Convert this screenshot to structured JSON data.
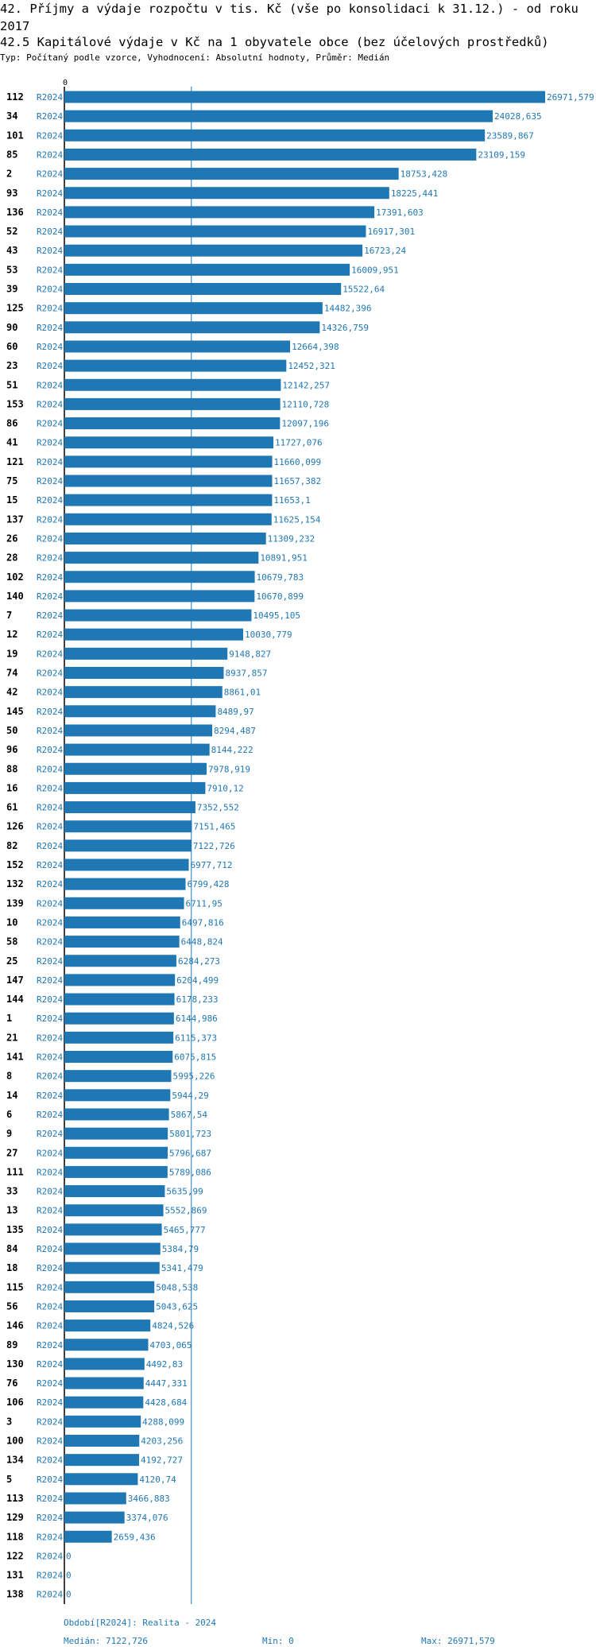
{
  "header": {
    "title": "42. Příjmy a výdaje rozpočtu v tis. Kč (vše po konsolidaci k 31.12.) - od roku 2017",
    "subtitle": "42.5 Kapitálové výdaje v Kč na 1 obyvatele obce (bez účelových prostředků)",
    "info": "Typ: Počítaný podle vzorce, Vyhodnocení: Absolutní hodnoty, Průměr: Medián"
  },
  "colors": {
    "bar": "#1f77b4",
    "label": "#1f77b4",
    "axis": "#000000",
    "median_line": "#1f77b4"
  },
  "chart_data": {
    "type": "bar",
    "orientation": "horizontal",
    "axis_zero_label": "0",
    "xlim": [
      0,
      26971.579
    ],
    "median": 7122.726,
    "period_label": "R2024",
    "categories": [
      "112",
      "34",
      "101",
      "85",
      "2",
      "93",
      "136",
      "52",
      "43",
      "53",
      "39",
      "125",
      "90",
      "60",
      "23",
      "51",
      "153",
      "86",
      "41",
      "121",
      "75",
      "15",
      "137",
      "26",
      "28",
      "102",
      "140",
      "7",
      "12",
      "19",
      "74",
      "42",
      "145",
      "50",
      "96",
      "88",
      "16",
      "61",
      "126",
      "82",
      "152",
      "132",
      "139",
      "10",
      "58",
      "25",
      "147",
      "144",
      "1",
      "21",
      "141",
      "8",
      "14",
      "6",
      "9",
      "27",
      "111",
      "33",
      "13",
      "135",
      "84",
      "18",
      "115",
      "56",
      "146",
      "89",
      "130",
      "76",
      "106",
      "3",
      "100",
      "134",
      "5",
      "113",
      "129",
      "118",
      "122",
      "131",
      "138"
    ],
    "values": [
      26971.579,
      24028.635,
      23589.867,
      23109.159,
      18753.428,
      18225.441,
      17391.603,
      16917.301,
      16723.24,
      16009.951,
      15522.64,
      14482.396,
      14326.759,
      12664.398,
      12452.321,
      12142.257,
      12110.728,
      12097.196,
      11727.076,
      11660.099,
      11657.382,
      11653.1,
      11625.154,
      11309.232,
      10891.951,
      10679.783,
      10670.899,
      10495.105,
      10030.779,
      9148.827,
      8937.857,
      8861.01,
      8489.97,
      8294.487,
      8144.222,
      7978.919,
      7910.12,
      7352.552,
      7151.465,
      7122.726,
      6977.712,
      6799.428,
      6711.95,
      6497.816,
      6448.824,
      6284.273,
      6204.499,
      6178.233,
      6144.986,
      6115.373,
      6075.815,
      5995.226,
      5944.29,
      5867.54,
      5801.723,
      5796.687,
      5789.086,
      5635.99,
      5552.869,
      5465.777,
      5384.79,
      5341.479,
      5048.538,
      5043.625,
      4824.526,
      4703.065,
      4492.83,
      4447.331,
      4428.684,
      4288.099,
      4203.256,
      4192.727,
      4120.74,
      3466.883,
      3374.076,
      2659.436,
      0,
      0,
      0
    ],
    "value_labels": [
      "26971,579",
      "24028,635",
      "23589,867",
      "23109,159",
      "18753,428",
      "18225,441",
      "17391,603",
      "16917,301",
      "16723,24",
      "16009,951",
      "15522,64",
      "14482,396",
      "14326,759",
      "12664,398",
      "12452,321",
      "12142,257",
      "12110,728",
      "12097,196",
      "11727,076",
      "11660,099",
      "11657,382",
      "11653,1",
      "11625,154",
      "11309,232",
      "10891,951",
      "10679,783",
      "10670,899",
      "10495,105",
      "10030,779",
      "9148,827",
      "8937,857",
      "8861,01",
      "8489,97",
      "8294,487",
      "8144,222",
      "7978,919",
      "7910,12",
      "7352,552",
      "7151,465",
      "7122,726",
      "6977,712",
      "6799,428",
      "6711,95",
      "6497,816",
      "6448,824",
      "6284,273",
      "6204,499",
      "6178,233",
      "6144,986",
      "6115,373",
      "6075,815",
      "5995,226",
      "5944,29",
      "5867,54",
      "5801,723",
      "5796,687",
      "5789,086",
      "5635,99",
      "5552,869",
      "5465,777",
      "5384,79",
      "5341,479",
      "5048,538",
      "5043,625",
      "4824,526",
      "4703,065",
      "4492,83",
      "4447,331",
      "4428,684",
      "4288,099",
      "4203,256",
      "4192,727",
      "4120,74",
      "3466,883",
      "3374,076",
      "2659,436",
      "0",
      "0",
      "0"
    ]
  },
  "footer": {
    "period": "Období[R2024]: Realita - 2024",
    "median": "Medián: 7122,726",
    "min": "Min: 0",
    "max": "Max: 26971,579"
  }
}
